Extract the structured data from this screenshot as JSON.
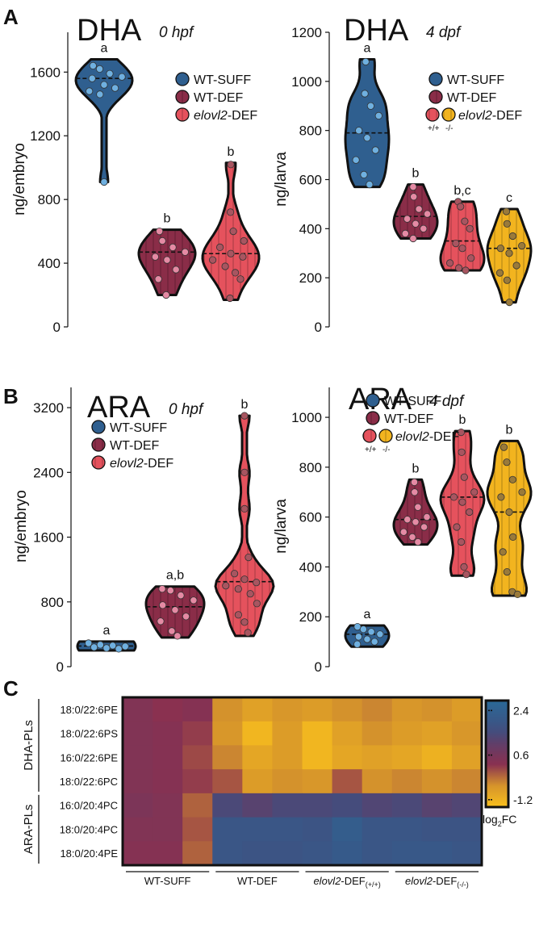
{
  "panels": {
    "A": "A",
    "B": "B",
    "C": "C"
  },
  "colors": {
    "wt_suff": "#2f5f8f",
    "wt_suff_point": "#6fb0e0",
    "wt_def": "#8a2d48",
    "wt_def_point": "#e58aa4",
    "elovl2_def": "#e5525d",
    "elovl2_def_point": "#a85560",
    "elovl2_ko": "#f2b41f",
    "elovl2_ko_point": "#9a7a3a",
    "outline": "#111111"
  },
  "chart_data": [
    {
      "type": "violin",
      "panel": "A",
      "title": "DHA",
      "subtitle": "0 hpf",
      "ylabel": "ng/embryo",
      "yticks": [
        0,
        400,
        800,
        1200,
        1600
      ],
      "ylim": [
        0,
        1850
      ],
      "legend": [
        "WT-SUFF",
        "WT-DEF",
        "elovl2-DEF"
      ],
      "legend_italic_prefix": [
        "",
        "",
        "elovl2"
      ],
      "legend_placement": "top-right",
      "groups": [
        {
          "name": "WT-SUFF",
          "letter": "a",
          "color": "wt_suff",
          "points": [
            1640,
            1620,
            1590,
            1570,
            1560,
            1520,
            1500,
            1480,
            1460,
            910
          ],
          "min": 910,
          "max": 1680,
          "median": 1560
        },
        {
          "name": "WT-DEF",
          "letter": "b",
          "color": "wt_def",
          "points": [
            600,
            540,
            500,
            470,
            440,
            420,
            360,
            300,
            200
          ],
          "min": 200,
          "max": 610,
          "median": 470
        },
        {
          "name": "elovl2-DEF",
          "letter": "b",
          "color": "elovl2_def",
          "points": [
            1020,
            720,
            600,
            540,
            500,
            460,
            440,
            420,
            380,
            340,
            300,
            180
          ],
          "min": 170,
          "max": 1030,
          "median": 460
        }
      ]
    },
    {
      "type": "violin",
      "panel": "A",
      "title": "DHA",
      "subtitle": "4 dpf",
      "ylabel": "ng/larva",
      "yticks": [
        0,
        200,
        400,
        600,
        800,
        1000,
        1200
      ],
      "ylim": [
        0,
        1200
      ],
      "legend": [
        "WT-SUFF",
        "WT-DEF",
        "elovl2-DEF"
      ],
      "legend_italic_prefix": [
        "",
        "",
        "elovl2"
      ],
      "legend_sublabels": [
        "+/+",
        "-/-"
      ],
      "legend_placement": "top-right",
      "groups": [
        {
          "name": "WT-SUFF",
          "letter": "a",
          "color": "wt_suff",
          "points": [
            1080,
            950,
            900,
            860,
            800,
            770,
            720,
            680,
            620,
            580
          ],
          "min": 570,
          "max": 1090,
          "median": 790
        },
        {
          "name": "WT-DEF",
          "letter": "b",
          "color": "wt_def",
          "points": [
            570,
            530,
            480,
            460,
            440,
            420,
            400,
            380,
            360
          ],
          "min": 360,
          "max": 580,
          "median": 450
        },
        {
          "name": "elovl2-DEF (+/+)",
          "letter": "b,c",
          "color": "elovl2_def",
          "points": [
            510,
            490,
            430,
            400,
            340,
            320,
            280,
            260,
            240,
            230
          ],
          "min": 230,
          "max": 510,
          "median": 350
        },
        {
          "name": "elovl2-DEF (-/-)",
          "letter": "c",
          "color": "elovl2_ko",
          "points": [
            470,
            420,
            370,
            330,
            320,
            300,
            250,
            220,
            190,
            100
          ],
          "min": 100,
          "max": 480,
          "median": 320
        }
      ]
    },
    {
      "type": "violin",
      "panel": "B",
      "title": "ARA",
      "subtitle": "0 hpf",
      "ylabel": "ng/embryo",
      "yticks": [
        0,
        800,
        1600,
        2400,
        3200
      ],
      "ylim": [
        0,
        3450
      ],
      "legend": [
        "WT-SUFF",
        "WT-DEF",
        "elovl2-DEF"
      ],
      "legend_italic_prefix": [
        "",
        "",
        "elovl2"
      ],
      "legend_placement": "top-left",
      "groups": [
        {
          "name": "WT-SUFF",
          "letter": "a",
          "color": "wt_suff",
          "points": [
            290,
            270,
            260,
            250,
            240,
            230,
            220
          ],
          "min": 200,
          "max": 310,
          "median": 255
        },
        {
          "name": "WT-DEF",
          "letter": "a,b",
          "color": "wt_def",
          "points": [
            960,
            940,
            880,
            820,
            760,
            700,
            620,
            560,
            440,
            380
          ],
          "min": 360,
          "max": 990,
          "median": 740
        },
        {
          "name": "elovl2-DEF",
          "letter": "b",
          "color": "elovl2_def",
          "points": [
            3100,
            2400,
            1950,
            1350,
            1150,
            1080,
            1040,
            1000,
            960,
            900,
            780,
            640,
            550,
            420
          ],
          "min": 380,
          "max": 3100,
          "median": 1050
        }
      ]
    },
    {
      "type": "violin",
      "panel": "B",
      "title": "ARA",
      "subtitle": "4 dpf",
      "ylabel": "ng/larva",
      "yticks": [
        0,
        200,
        400,
        600,
        800,
        1000
      ],
      "ylim": [
        0,
        1120
      ],
      "legend": [
        "WT-SUFF",
        "WT-DEF",
        "elovl2-DEF"
      ],
      "legend_italic_prefix": [
        "",
        "",
        "elovl2"
      ],
      "legend_sublabels": [
        "+/+",
        "-/-"
      ],
      "legend_placement": "top-left",
      "groups": [
        {
          "name": "WT-SUFF",
          "letter": "a",
          "color": "wt_suff",
          "points": [
            160,
            150,
            140,
            130,
            120,
            110,
            100,
            90
          ],
          "min": 80,
          "max": 165,
          "median": 130
        },
        {
          "name": "WT-DEF",
          "letter": "b",
          "color": "wt_def",
          "points": [
            740,
            700,
            640,
            600,
            590,
            580,
            560,
            540,
            520,
            500
          ],
          "min": 490,
          "max": 750,
          "median": 590
        },
        {
          "name": "elovl2-DEF (+/+)",
          "letter": "b",
          "color": "elovl2_def",
          "points": [
            940,
            860,
            760,
            700,
            680,
            660,
            620,
            560,
            500,
            400,
            370
          ],
          "min": 365,
          "max": 945,
          "median": 680
        },
        {
          "name": "elovl2-DEF (-/-)",
          "letter": "b",
          "color": "elovl2_ko",
          "points": [
            880,
            820,
            750,
            700,
            680,
            620,
            520,
            460,
            380,
            300,
            290
          ],
          "min": 285,
          "max": 905,
          "median": 620
        }
      ]
    },
    {
      "type": "heatmap",
      "panel": "C",
      "rows": [
        "18:0/22:6PE",
        "18:0/22:6PS",
        "16:0/22:6PE",
        "18:0/22:6PC",
        "16:0/20:4PC",
        "18:0/20:4PC",
        "18:0/20:4PE"
      ],
      "row_groups": [
        {
          "label": "DHA-PLs",
          "rows": [
            0,
            3
          ]
        },
        {
          "label": "ARA-PLs",
          "rows": [
            4,
            6
          ]
        }
      ],
      "column_groups": [
        {
          "label": "WT-SUFF",
          "columns": [
            0,
            2
          ]
        },
        {
          "label": "WT-DEF",
          "columns": [
            3,
            5
          ]
        },
        {
          "label": "elovl2-DEF",
          "italic_prefix": "elovl2",
          "suffix": "(+/+)",
          "columns": [
            6,
            8
          ]
        },
        {
          "label": "elovl2-DEF",
          "italic_prefix": "elovl2",
          "suffix": "(-/-)",
          "columns": [
            9,
            11
          ]
        }
      ],
      "values": [
        [
          0.4,
          0.2,
          0.3,
          -0.6,
          -0.9,
          -0.7,
          -0.8,
          -0.6,
          -0.5,
          -0.7,
          -0.6,
          -0.8
        ],
        [
          0.4,
          0.3,
          0.1,
          -0.7,
          -1.3,
          -0.8,
          -1.3,
          -0.9,
          -0.6,
          -0.8,
          -0.9,
          -0.7
        ],
        [
          0.4,
          0.3,
          0.0,
          -0.5,
          -1.0,
          -0.8,
          -1.3,
          -1.0,
          -0.9,
          -1.0,
          -1.2,
          -0.9
        ],
        [
          0.4,
          0.3,
          0.1,
          -0.1,
          -0.8,
          -0.6,
          -0.7,
          -0.1,
          -0.6,
          -0.5,
          -0.6,
          -0.5
        ],
        [
          0.5,
          0.4,
          -0.2,
          1.4,
          1.2,
          1.4,
          1.4,
          1.5,
          1.3,
          1.4,
          1.2,
          1.3
        ],
        [
          0.4,
          0.4,
          -0.1,
          1.9,
          1.9,
          1.9,
          1.8,
          2.2,
          1.9,
          1.9,
          1.8,
          1.8
        ],
        [
          0.3,
          0.3,
          -0.2,
          1.9,
          1.8,
          1.8,
          1.9,
          2.1,
          1.9,
          2.0,
          2.0,
          1.9
        ]
      ],
      "colorbar": {
        "ticks": [
          "2.4",
          "0.6",
          "-1.2"
        ],
        "label": "log",
        "label_sub": "2",
        "label_suffix": "FC",
        "range": [
          -1.5,
          2.8
        ]
      }
    }
  ]
}
